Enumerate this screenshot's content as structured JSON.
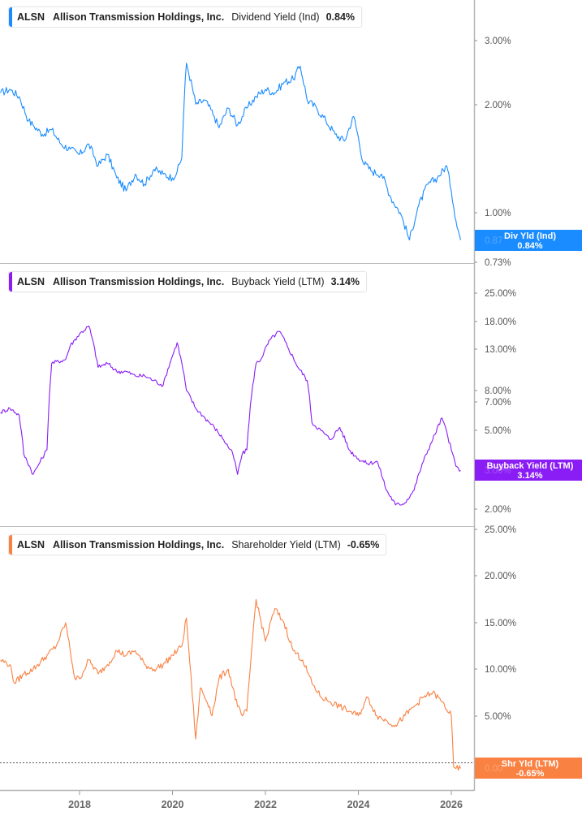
{
  "panels": [
    {
      "ticker": "ALSN",
      "company": "Allison Transmission Holdings, Inc.",
      "metric": "Dividend Yield (Ind)",
      "value": "0.84%",
      "color": "#1a8cff",
      "badge_label": "Div Yld (Ind)",
      "badge_value": "0.84%",
      "badge_ghost": "0.87",
      "y_ticks": [
        "3.00%",
        "2.00%",
        "1.00%",
        "0.73%"
      ]
    },
    {
      "ticker": "ALSN",
      "company": "Allison Transmission Holdings, Inc.",
      "metric": "Buyback Yield (LTM)",
      "value": "3.14%",
      "color": "#8a1cf5",
      "badge_label": "Buyback Yield (LTM)",
      "badge_value": "3.14%",
      "badge_ghost": "3.00%",
      "y_ticks": [
        "25.00%",
        "18.00%",
        "13.00%",
        "8.00%",
        "7.00%",
        "5.00%",
        "2.00%"
      ]
    },
    {
      "ticker": "ALSN",
      "company": "Allison Transmission Holdings, Inc.",
      "metric": "Shareholder Yield (LTM)",
      "value": "-0.65%",
      "color": "#f98142",
      "badge_label": "Shr Yld (LTM)",
      "badge_value": "-0.65%",
      "badge_ghost": "0.00",
      "y_ticks": [
        "25.00%",
        "20.00%",
        "15.00%",
        "10.00%",
        "5.00%"
      ]
    }
  ],
  "x_axis": {
    "ticks": [
      "2018",
      "2020",
      "2022",
      "2024",
      "2026"
    ]
  },
  "chart_data": [
    {
      "type": "line",
      "title": "ALSN Allison Transmission Holdings, Inc. Dividend Yield (Ind) 0.84%",
      "xlabel": "",
      "ylabel": "Dividend Yield (Ind)",
      "scale": "log",
      "ylim": [
        0.73,
        3.6
      ],
      "y_ticks": [
        3.0,
        2.0,
        1.0,
        0.73
      ],
      "x_ticks": [
        2018,
        2020,
        2022,
        2024,
        2026
      ],
      "legend": "top-left",
      "series": [
        {
          "name": "Dividend Yield (Ind)",
          "color": "#1a8cff",
          "x": [
            2016.3,
            2016.5,
            2016.7,
            2016.9,
            2017.0,
            2017.2,
            2017.4,
            2017.6,
            2017.8,
            2018.0,
            2018.2,
            2018.4,
            2018.6,
            2018.8,
            2019.0,
            2019.2,
            2019.4,
            2019.6,
            2019.8,
            2020.0,
            2020.1,
            2020.2,
            2020.3,
            2020.5,
            2020.7,
            2020.9,
            2021.0,
            2021.2,
            2021.4,
            2021.6,
            2021.8,
            2022.0,
            2022.2,
            2022.4,
            2022.6,
            2022.75,
            2022.9,
            2023.1,
            2023.3,
            2023.5,
            2023.7,
            2023.9,
            2024.1,
            2024.3,
            2024.5,
            2024.7,
            2024.9,
            2025.1,
            2025.3,
            2025.5,
            2025.7,
            2025.9,
            2026.0,
            2026.1,
            2026.2
          ],
          "values": [
            2.15,
            2.2,
            2.1,
            1.8,
            1.75,
            1.65,
            1.7,
            1.55,
            1.5,
            1.45,
            1.55,
            1.35,
            1.45,
            1.25,
            1.15,
            1.28,
            1.2,
            1.32,
            1.28,
            1.25,
            1.3,
            1.42,
            2.6,
            2.0,
            2.05,
            1.85,
            1.72,
            1.95,
            1.75,
            1.95,
            2.1,
            2.2,
            2.15,
            2.3,
            2.35,
            2.55,
            2.05,
            1.95,
            1.8,
            1.65,
            1.58,
            1.85,
            1.38,
            1.3,
            1.28,
            1.1,
            1.0,
            0.84,
            1.05,
            1.2,
            1.25,
            1.35,
            1.15,
            0.95,
            0.84
          ]
        }
      ]
    },
    {
      "type": "line",
      "title": "ALSN Allison Transmission Holdings, Inc. Buyback Yield (LTM) 3.14%",
      "xlabel": "",
      "ylabel": "Buyback Yield (LTM)",
      "scale": "log",
      "ylim": [
        1.8,
        30
      ],
      "y_ticks": [
        25,
        18,
        13,
        8,
        7,
        5,
        3,
        2
      ],
      "x_ticks": [
        2018,
        2020,
        2022,
        2024,
        2026
      ],
      "legend": "top-left",
      "series": [
        {
          "name": "Buyback Yield (LTM)",
          "color": "#8a1cf5",
          "x": [
            2016.3,
            2016.5,
            2016.7,
            2016.8,
            2017.0,
            2017.1,
            2017.3,
            2017.4,
            2017.7,
            2017.8,
            2018.0,
            2018.2,
            2018.4,
            2018.6,
            2018.8,
            2019.0,
            2019.2,
            2019.4,
            2019.6,
            2019.8,
            2020.0,
            2020.1,
            2020.3,
            2020.5,
            2020.7,
            2020.9,
            2021.1,
            2021.3,
            2021.4,
            2021.5,
            2021.6,
            2021.8,
            2021.9,
            2022.1,
            2022.3,
            2022.5,
            2022.7,
            2022.9,
            2023.0,
            2023.2,
            2023.4,
            2023.6,
            2023.8,
            2024.0,
            2024.2,
            2024.4,
            2024.6,
            2024.8,
            2025.0,
            2025.2,
            2025.4,
            2025.6,
            2025.8,
            2026.0,
            2026.1,
            2026.2
          ],
          "values": [
            6.2,
            6.5,
            6.0,
            3.8,
            3.0,
            3.3,
            4.0,
            11.0,
            11.5,
            13.5,
            15.5,
            17.0,
            10.5,
            11.0,
            10.0,
            10.0,
            9.5,
            9.5,
            9.0,
            8.5,
            12.0,
            14.0,
            8.0,
            6.5,
            5.8,
            5.2,
            4.5,
            3.8,
            3.0,
            3.8,
            4.0,
            11.0,
            11.5,
            14.5,
            16.0,
            13.0,
            10.5,
            9.0,
            5.5,
            5.0,
            4.5,
            5.2,
            4.0,
            3.6,
            3.4,
            3.5,
            2.5,
            2.1,
            2.15,
            2.5,
            3.5,
            4.5,
            5.8,
            4.0,
            3.3,
            3.14
          ]
        }
      ]
    },
    {
      "type": "line",
      "title": "ALSN Allison Transmission Holdings, Inc. Shareholder Yield (LTM) -0.65%",
      "xlabel": "",
      "ylabel": "Shareholder Yield (LTM)",
      "scale": "linear",
      "ylim": [
        -2,
        26
      ],
      "y_ticks": [
        25,
        20,
        15,
        10,
        5,
        0
      ],
      "x_ticks": [
        2018,
        2020,
        2022,
        2024,
        2026
      ],
      "legend": "top-left",
      "series": [
        {
          "name": "Shareholder Yield (LTM)",
          "color": "#f98142",
          "x": [
            2016.3,
            2016.5,
            2016.6,
            2016.8,
            2017.0,
            2017.3,
            2017.5,
            2017.7,
            2017.9,
            2018.0,
            2018.2,
            2018.4,
            2018.6,
            2018.8,
            2019.0,
            2019.2,
            2019.4,
            2019.6,
            2019.8,
            2020.0,
            2020.2,
            2020.3,
            2020.5,
            2020.6,
            2020.8,
            2020.85,
            2021.0,
            2021.2,
            2021.4,
            2021.5,
            2021.6,
            2021.75,
            2021.8,
            2022.0,
            2022.2,
            2022.4,
            2022.6,
            2022.8,
            2023.0,
            2023.2,
            2023.4,
            2023.6,
            2023.8,
            2024.0,
            2024.2,
            2024.4,
            2024.6,
            2024.8,
            2025.0,
            2025.2,
            2025.4,
            2025.6,
            2025.8,
            2026.0,
            2026.05,
            2026.1,
            2026.2
          ],
          "values": [
            11.0,
            10.5,
            8.5,
            9.5,
            10.0,
            11.5,
            12.5,
            15.0,
            9.0,
            9.0,
            11.0,
            9.5,
            10.5,
            12.0,
            11.5,
            12.0,
            10.5,
            10.0,
            10.5,
            11.5,
            12.5,
            15.5,
            2.5,
            8.0,
            6.0,
            5.0,
            9.0,
            10.0,
            6.0,
            5.0,
            5.5,
            15.0,
            17.5,
            13.0,
            16.5,
            15.0,
            12.0,
            11.0,
            8.5,
            7.0,
            6.5,
            6.0,
            5.5,
            5.0,
            7.0,
            5.0,
            4.5,
            4.0,
            5.0,
            6.0,
            7.0,
            7.5,
            6.5,
            5.0,
            -0.5,
            -0.65,
            -0.65
          ]
        }
      ],
      "reference_line": {
        "y": 0,
        "style": "dotted"
      }
    }
  ]
}
